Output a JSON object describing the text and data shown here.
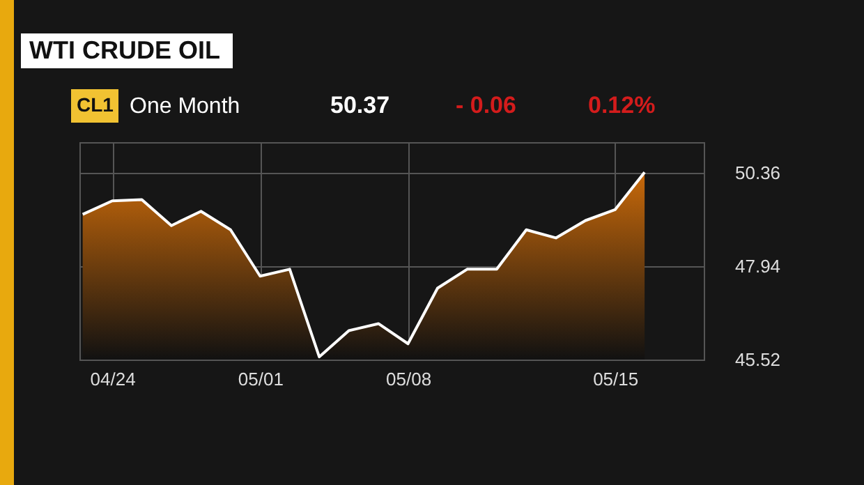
{
  "chart_data": {
    "type": "area",
    "title": "WTI CRUDE OIL",
    "annotations": [
      "CL1",
      "One Month",
      "50.37",
      "- 0.06",
      "0.12%"
    ],
    "categories": [
      null,
      "04/24",
      null,
      null,
      null,
      null,
      "05/01",
      null,
      null,
      null,
      null,
      "05/08",
      null,
      null,
      null,
      null,
      null,
      null,
      "05/15",
      null
    ],
    "series": [
      {
        "color": "#c8690a",
        "values": [
          49.28,
          49.63,
          49.66,
          48.99,
          49.36,
          48.88,
          47.68,
          47.86,
          45.59,
          46.27,
          46.45,
          45.93,
          47.37,
          47.86,
          47.86,
          48.88,
          48.67,
          49.12,
          49.4,
          50.37
        ]
      }
    ],
    "ylim": [
      45.52,
      51.15
    ],
    "yticks": [
      45.52,
      47.94,
      50.36
    ],
    "grid": true
  }
}
